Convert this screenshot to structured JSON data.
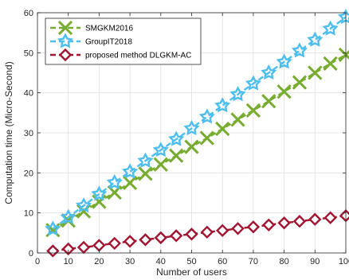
{
  "chart_data": {
    "type": "line",
    "xlabel": "Number of users",
    "ylabel": "Computation time (Micro-Second)",
    "xlim": [
      0,
      100
    ],
    "ylim": [
      0,
      60
    ],
    "xticks": [
      0,
      10,
      20,
      30,
      40,
      50,
      60,
      70,
      80,
      90,
      100
    ],
    "yticks": [
      0,
      10,
      20,
      30,
      40,
      50,
      60
    ],
    "grid": true,
    "legend_position": "top-left",
    "x": [
      5,
      10,
      15,
      20,
      25,
      30,
      35,
      40,
      45,
      50,
      55,
      60,
      65,
      70,
      75,
      80,
      85,
      90,
      95,
      100
    ],
    "series": [
      {
        "name": "SMGKM2016",
        "color": "#77ac30",
        "marker": "x-mark",
        "dash": "dashed",
        "values": [
          5.7,
          8.1,
          10.4,
          12.8,
          15.1,
          17.5,
          19.8,
          22.1,
          24.3,
          26.5,
          28.7,
          31.0,
          33.3,
          35.6,
          37.9,
          40.3,
          42.6,
          45.0,
          47.3,
          49.5
        ]
      },
      {
        "name": "GroupIT2018",
        "color": "#4dbeee",
        "marker": "star",
        "dash": "dashed",
        "values": [
          6.0,
          8.9,
          11.8,
          14.7,
          17.6,
          20.3,
          23.0,
          25.7,
          28.4,
          31.1,
          34.0,
          36.8,
          39.6,
          42.3,
          45.0,
          47.7,
          50.5,
          53.2,
          56.0,
          58.9
        ]
      },
      {
        "name": "proposed method DLGKM-AC",
        "color": "#a2142f",
        "marker": "diamond",
        "dash": "dashed",
        "values": [
          0.5,
          1.0,
          1.4,
          1.9,
          2.4,
          2.9,
          3.3,
          3.8,
          4.3,
          4.7,
          5.2,
          5.6,
          6.1,
          6.5,
          7.0,
          7.5,
          7.9,
          8.4,
          8.8,
          9.3
        ]
      }
    ]
  }
}
